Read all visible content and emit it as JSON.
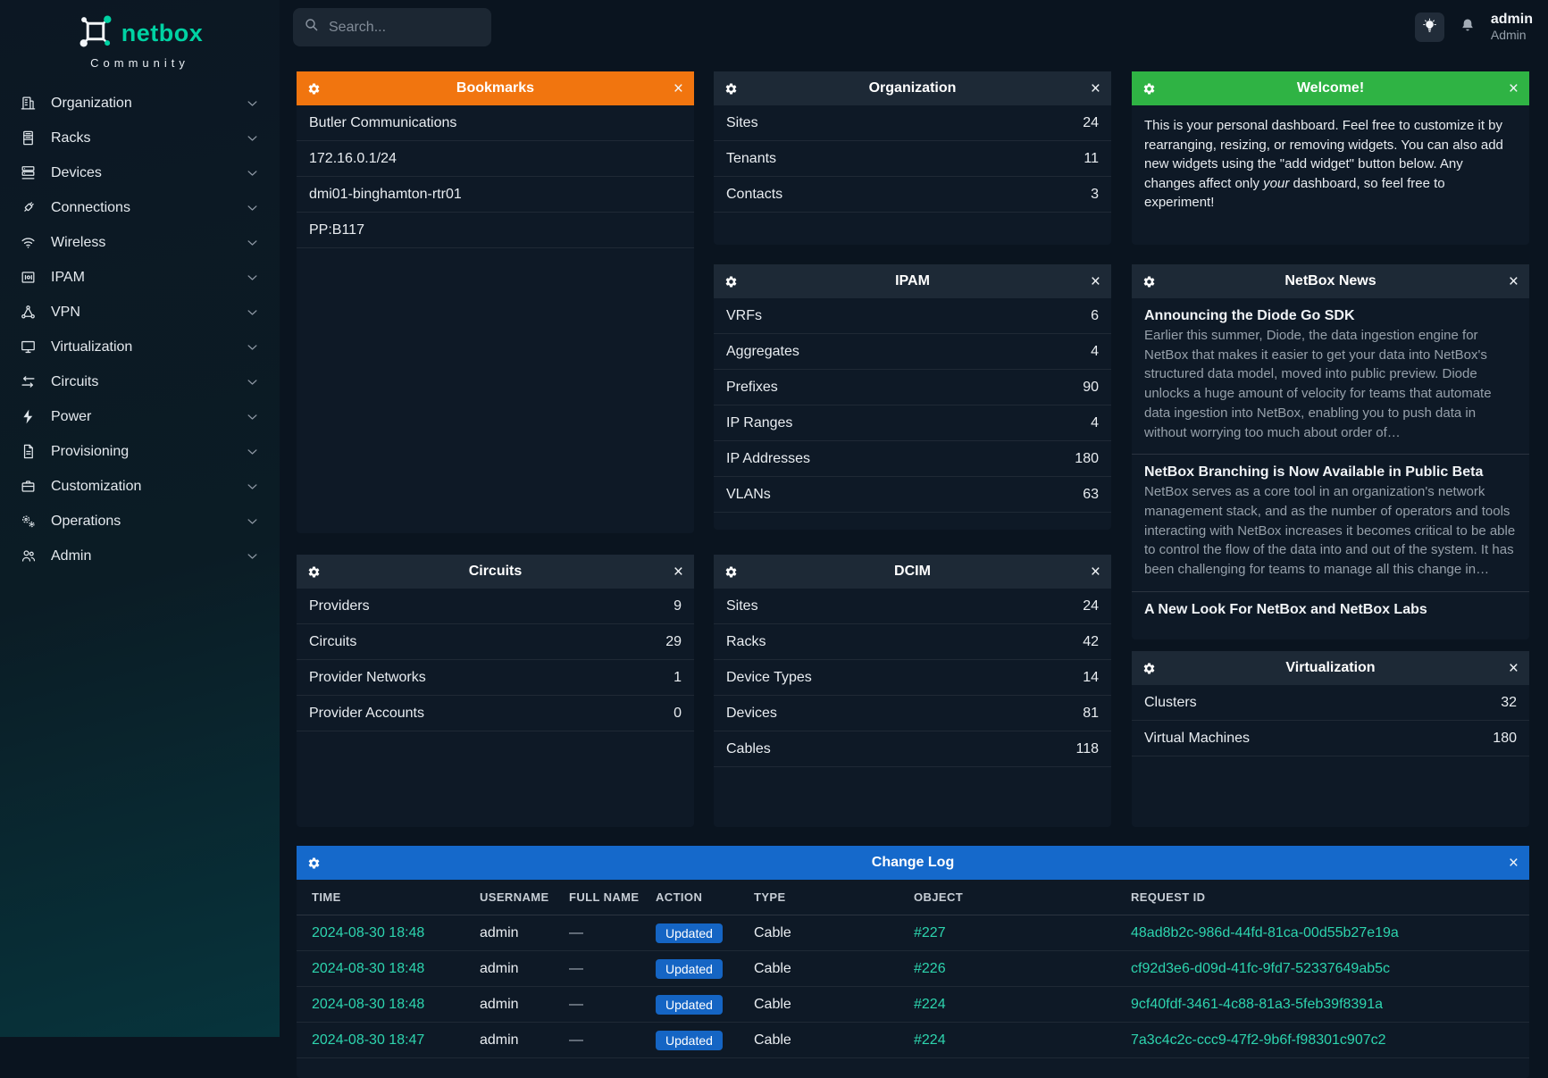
{
  "brand": {
    "name": "netbox",
    "subtitle": "Community",
    "accent_color": "#00d2a3"
  },
  "icons": {
    "close": "×",
    "gear": "gear-icon",
    "search": "search-icon",
    "lightbulb": "lightbulb-icon",
    "bell": "bell-icon",
    "chevron_down": "chevron-down-icon"
  },
  "sidebar": {
    "items": [
      {
        "id": "organization",
        "label": "Organization",
        "icon": "building"
      },
      {
        "id": "racks",
        "label": "Racks",
        "icon": "rack"
      },
      {
        "id": "devices",
        "label": "Devices",
        "icon": "server"
      },
      {
        "id": "connections",
        "label": "Connections",
        "icon": "plug"
      },
      {
        "id": "wireless",
        "label": "Wireless",
        "icon": "wifi"
      },
      {
        "id": "ipam",
        "label": "IPAM",
        "icon": "binary"
      },
      {
        "id": "vpn",
        "label": "VPN",
        "icon": "network"
      },
      {
        "id": "virtualization",
        "label": "Virtualization",
        "icon": "monitor"
      },
      {
        "id": "circuits",
        "label": "Circuits",
        "icon": "transfer"
      },
      {
        "id": "power",
        "label": "Power",
        "icon": "bolt"
      },
      {
        "id": "provisioning",
        "label": "Provisioning",
        "icon": "document"
      },
      {
        "id": "customization",
        "label": "Customization",
        "icon": "briefcase"
      },
      {
        "id": "operations",
        "label": "Operations",
        "icon": "gears"
      },
      {
        "id": "admin",
        "label": "Admin",
        "icon": "users"
      }
    ]
  },
  "topbar": {
    "search_placeholder": "Search...",
    "user": {
      "username": "admin",
      "role": "Admin"
    }
  },
  "widgets": {
    "bookmarks": {
      "title": "Bookmarks",
      "header_color": "#f1750f",
      "items": [
        {
          "label": "Butler Communications"
        },
        {
          "label": "172.16.0.1/24"
        },
        {
          "label": "dmi01-binghamton-rtr01"
        },
        {
          "label": "PP:B117"
        }
      ]
    },
    "organization": {
      "title": "Organization",
      "header_color": "#1d2936",
      "stats": [
        {
          "label": "Sites",
          "value": "24"
        },
        {
          "label": "Tenants",
          "value": "11"
        },
        {
          "label": "Contacts",
          "value": "3"
        }
      ]
    },
    "welcome": {
      "title": "Welcome!",
      "header_color": "#2fb344",
      "body_before": "This is your personal dashboard. Feel free to customize it by rearranging, resizing, or removing widgets. You can also add new widgets using the \"add widget\" button below. Any changes affect only ",
      "body_italic": "your",
      "body_after": " dashboard, so feel free to experiment!"
    },
    "ipam": {
      "title": "IPAM",
      "header_color": "#1d2936",
      "stats": [
        {
          "label": "VRFs",
          "value": "6"
        },
        {
          "label": "Aggregates",
          "value": "4"
        },
        {
          "label": "Prefixes",
          "value": "90"
        },
        {
          "label": "IP Ranges",
          "value": "4"
        },
        {
          "label": "IP Addresses",
          "value": "180"
        },
        {
          "label": "VLANs",
          "value": "63"
        }
      ]
    },
    "news": {
      "title": "NetBox News",
      "header_color": "#1d2936",
      "items": [
        {
          "title": "Announcing the Diode Go SDK",
          "body": "Earlier this summer, Diode, the data ingestion engine for NetBox that makes it easier to get your data into NetBox's structured data model, moved into public preview. Diode unlocks a huge amount of velocity for teams that automate data ingestion into NetBox, enabling you to push data in without worrying too much about order of…"
        },
        {
          "title": "NetBox Branching is Now Available in Public Beta",
          "body": "NetBox serves as a core tool in an organization's network management stack, and as the number of operators and tools interacting with NetBox increases it becomes critical to be able to control the flow of the data into and out of the system. It has been challenging for teams to manage all this change in…"
        },
        {
          "title": "A New Look For NetBox and NetBox Labs",
          "body": ""
        }
      ]
    },
    "circuits": {
      "title": "Circuits",
      "header_color": "#1d2936",
      "stats": [
        {
          "label": "Providers",
          "value": "9"
        },
        {
          "label": "Circuits",
          "value": "29"
        },
        {
          "label": "Provider Networks",
          "value": "1"
        },
        {
          "label": "Provider Accounts",
          "value": "0"
        }
      ]
    },
    "dcim": {
      "title": "DCIM",
      "header_color": "#1d2936",
      "stats": [
        {
          "label": "Sites",
          "value": "24"
        },
        {
          "label": "Racks",
          "value": "42"
        },
        {
          "label": "Device Types",
          "value": "14"
        },
        {
          "label": "Devices",
          "value": "81"
        },
        {
          "label": "Cables",
          "value": "118"
        }
      ]
    },
    "virtualization": {
      "title": "Virtualization",
      "header_color": "#1d2936",
      "stats": [
        {
          "label": "Clusters",
          "value": "32"
        },
        {
          "label": "Virtual Machines",
          "value": "180"
        }
      ]
    },
    "changelog": {
      "title": "Change Log",
      "header_color": "#1569cb",
      "action_badge_color": "#1565c4",
      "link_color": "#2dd4ae",
      "columns": [
        "TIME",
        "USERNAME",
        "FULL NAME",
        "ACTION",
        "TYPE",
        "OBJECT",
        "REQUEST ID"
      ],
      "rows": [
        {
          "time": "2024-08-30 18:48",
          "username": "admin",
          "full_name": "—",
          "action": "Updated",
          "type": "Cable",
          "object": "#227",
          "request_id": "48ad8b2c-986d-44fd-81ca-00d55b27e19a"
        },
        {
          "time": "2024-08-30 18:48",
          "username": "admin",
          "full_name": "—",
          "action": "Updated",
          "type": "Cable",
          "object": "#226",
          "request_id": "cf92d3e6-d09d-41fc-9fd7-52337649ab5c"
        },
        {
          "time": "2024-08-30 18:48",
          "username": "admin",
          "full_name": "—",
          "action": "Updated",
          "type": "Cable",
          "object": "#224",
          "request_id": "9cf40fdf-3461-4c88-81a3-5feb39f8391a"
        },
        {
          "time": "2024-08-30 18:47",
          "username": "admin",
          "full_name": "—",
          "action": "Updated",
          "type": "Cable",
          "object": "#224",
          "request_id": "7a3c4c2c-ccc9-47f2-9b6f-f98301c907c2"
        }
      ]
    }
  }
}
